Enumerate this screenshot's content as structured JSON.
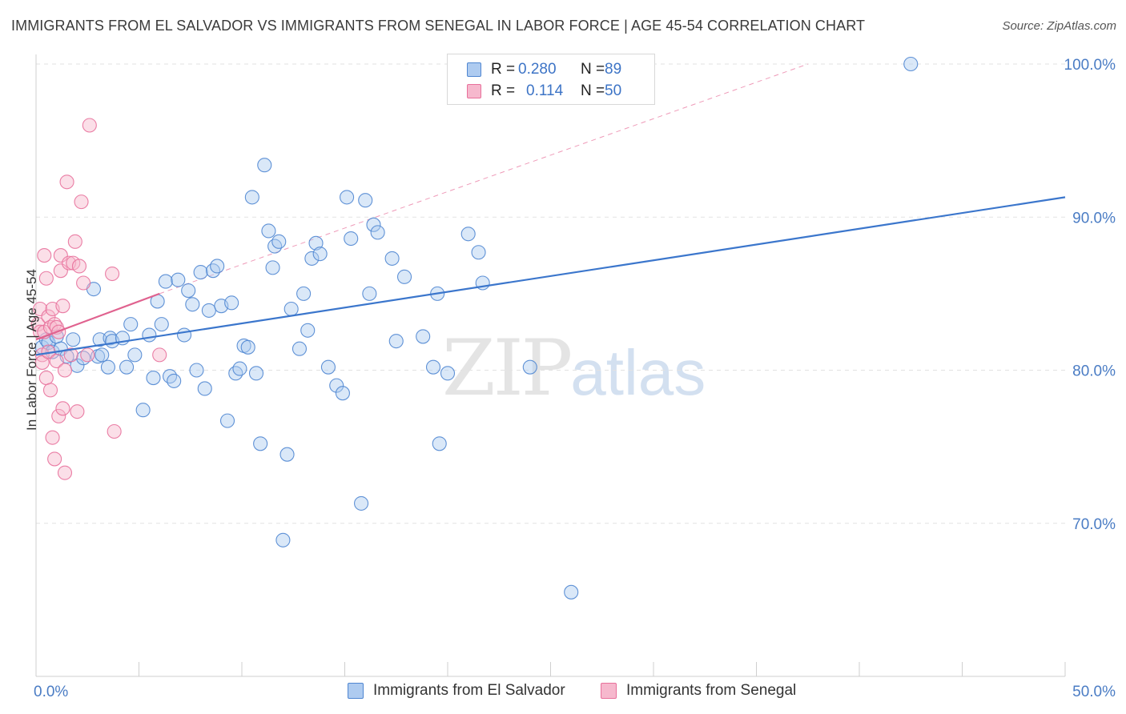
{
  "title": "IMMIGRANTS FROM EL SALVADOR VS IMMIGRANTS FROM SENEGAL IN LABOR FORCE | AGE 45-54 CORRELATION CHART",
  "source": "Source: ZipAtlas.com",
  "watermark": {
    "zip": "ZIP",
    "atlas": "atlas"
  },
  "colors": {
    "blue": "#4f86d1",
    "blue_fill": "#aecbf0",
    "pink": "#e8709b",
    "pink_fill": "#f6b8cd",
    "axis_text": "#4a7cc4"
  },
  "legend": {
    "rows": [
      {
        "series": "El Salvador",
        "r_label": "R =",
        "r_value": "0.280",
        "n_label": "N =",
        "n_value": "89"
      },
      {
        "series": "Senegal",
        "r_label": "R =",
        "r_value": "0.114",
        "n_label": "N =",
        "n_value": "50"
      }
    ]
  },
  "bottom_legend": [
    "Immigrants from El Salvador",
    "Immigrants from Senegal"
  ],
  "chart_data": {
    "type": "scatter",
    "title": "IMMIGRANTS FROM EL SALVADOR VS IMMIGRANTS FROM SENEGAL IN LABOR FORCE | AGE 45-54 CORRELATION CHART",
    "xlabel": "",
    "ylabel": "In Labor Force | Age 45-54",
    "xlim": [
      0,
      50
    ],
    "ylim": [
      62,
      102
    ],
    "x_tick_labels": [
      "0.0%",
      "50.0%"
    ],
    "y_ticks": [
      70,
      80,
      90,
      100
    ],
    "y_tick_labels": [
      "70.0%",
      "80.0%",
      "90.0%",
      "100.0%"
    ],
    "grid": true,
    "series": [
      {
        "name": "Immigrants from El Salvador",
        "color": "#4f86d1",
        "points": [
          [
            0.3,
            81.5
          ],
          [
            0.5,
            82.0
          ],
          [
            0.6,
            81.8
          ],
          [
            0.8,
            81.2
          ],
          [
            1.0,
            82.2
          ],
          [
            1.2,
            81.4
          ],
          [
            1.5,
            80.9
          ],
          [
            1.8,
            82.0
          ],
          [
            2.0,
            80.3
          ],
          [
            2.3,
            80.8
          ],
          [
            2.8,
            85.3
          ],
          [
            3.0,
            80.9
          ],
          [
            3.1,
            82.0
          ],
          [
            3.2,
            81.0
          ],
          [
            3.5,
            80.2
          ],
          [
            3.6,
            82.1
          ],
          [
            3.7,
            81.9
          ],
          [
            4.2,
            82.1
          ],
          [
            4.4,
            80.2
          ],
          [
            4.6,
            83.0
          ],
          [
            4.8,
            81.0
          ],
          [
            5.2,
            77.4
          ],
          [
            5.5,
            82.3
          ],
          [
            5.7,
            79.5
          ],
          [
            5.9,
            84.5
          ],
          [
            6.1,
            83.0
          ],
          [
            6.3,
            85.8
          ],
          [
            6.5,
            79.6
          ],
          [
            6.7,
            79.3
          ],
          [
            6.9,
            85.9
          ],
          [
            7.2,
            82.3
          ],
          [
            7.4,
            85.2
          ],
          [
            7.6,
            84.3
          ],
          [
            7.8,
            80.0
          ],
          [
            8.0,
            86.4
          ],
          [
            8.2,
            78.8
          ],
          [
            8.4,
            83.9
          ],
          [
            8.6,
            86.5
          ],
          [
            8.8,
            86.8
          ],
          [
            9.0,
            84.2
          ],
          [
            9.3,
            76.7
          ],
          [
            9.5,
            84.4
          ],
          [
            9.7,
            79.8
          ],
          [
            9.9,
            80.1
          ],
          [
            10.1,
            81.6
          ],
          [
            10.3,
            81.5
          ],
          [
            10.5,
            91.3
          ],
          [
            10.7,
            79.8
          ],
          [
            10.9,
            75.2
          ],
          [
            11.1,
            93.4
          ],
          [
            11.3,
            89.1
          ],
          [
            11.5,
            86.7
          ],
          [
            11.6,
            88.1
          ],
          [
            11.8,
            88.4
          ],
          [
            12.0,
            68.9
          ],
          [
            12.2,
            74.5
          ],
          [
            12.4,
            84.0
          ],
          [
            12.8,
            81.4
          ],
          [
            13.0,
            85.0
          ],
          [
            13.2,
            82.6
          ],
          [
            13.4,
            87.3
          ],
          [
            13.6,
            88.3
          ],
          [
            13.8,
            87.6
          ],
          [
            14.2,
            80.2
          ],
          [
            14.6,
            79.0
          ],
          [
            14.9,
            78.5
          ],
          [
            15.1,
            91.3
          ],
          [
            15.3,
            88.6
          ],
          [
            15.8,
            71.3
          ],
          [
            16.0,
            91.1
          ],
          [
            16.2,
            85.0
          ],
          [
            16.4,
            89.5
          ],
          [
            16.6,
            89.0
          ],
          [
            17.3,
            87.3
          ],
          [
            17.5,
            81.9
          ],
          [
            17.9,
            86.1
          ],
          [
            18.8,
            82.2
          ],
          [
            19.3,
            80.2
          ],
          [
            19.5,
            85.0
          ],
          [
            19.6,
            75.2
          ],
          [
            20.0,
            79.8
          ],
          [
            21.0,
            88.9
          ],
          [
            21.5,
            87.7
          ],
          [
            21.7,
            85.7
          ],
          [
            24.0,
            80.2
          ],
          [
            26.0,
            65.5
          ],
          [
            42.5,
            100.0
          ]
        ]
      },
      {
        "name": "Immigrants from Senegal",
        "color": "#e8709b",
        "points": [
          [
            0.1,
            83.0
          ],
          [
            0.2,
            82.5
          ],
          [
            0.2,
            84.0
          ],
          [
            0.3,
            81.0
          ],
          [
            0.3,
            80.5
          ],
          [
            0.4,
            87.5
          ],
          [
            0.4,
            82.5
          ],
          [
            0.5,
            86.0
          ],
          [
            0.5,
            79.5
          ],
          [
            0.6,
            83.5
          ],
          [
            0.6,
            81.2
          ],
          [
            0.7,
            82.8
          ],
          [
            0.7,
            78.7
          ],
          [
            0.8,
            84.0
          ],
          [
            0.8,
            75.6
          ],
          [
            0.9,
            83.0
          ],
          [
            0.9,
            74.2
          ],
          [
            1.0,
            82.8
          ],
          [
            1.0,
            80.6
          ],
          [
            1.1,
            82.5
          ],
          [
            1.1,
            77.0
          ],
          [
            1.2,
            87.5
          ],
          [
            1.2,
            86.5
          ],
          [
            1.3,
            84.2
          ],
          [
            1.3,
            77.5
          ],
          [
            1.4,
            80.0
          ],
          [
            1.4,
            73.3
          ],
          [
            1.5,
            92.3
          ],
          [
            1.6,
            87.0
          ],
          [
            1.7,
            81.0
          ],
          [
            1.8,
            87.0
          ],
          [
            1.9,
            88.4
          ],
          [
            2.0,
            77.3
          ],
          [
            2.1,
            86.8
          ],
          [
            2.2,
            91.0
          ],
          [
            2.3,
            85.7
          ],
          [
            2.5,
            81.0
          ],
          [
            2.6,
            96.0
          ],
          [
            3.7,
            86.3
          ],
          [
            3.8,
            76.0
          ],
          [
            6.0,
            81.0
          ]
        ]
      }
    ],
    "trendlines": [
      {
        "series": "Immigrants from El Salvador",
        "from": [
          0,
          81.0
        ],
        "to": [
          50,
          91.3
        ]
      },
      {
        "series": "Immigrants from Senegal",
        "from": [
          0,
          82.0
        ],
        "to": [
          6.0,
          85.0
        ],
        "extended_to": [
          37.5,
          100.0
        ]
      }
    ]
  }
}
